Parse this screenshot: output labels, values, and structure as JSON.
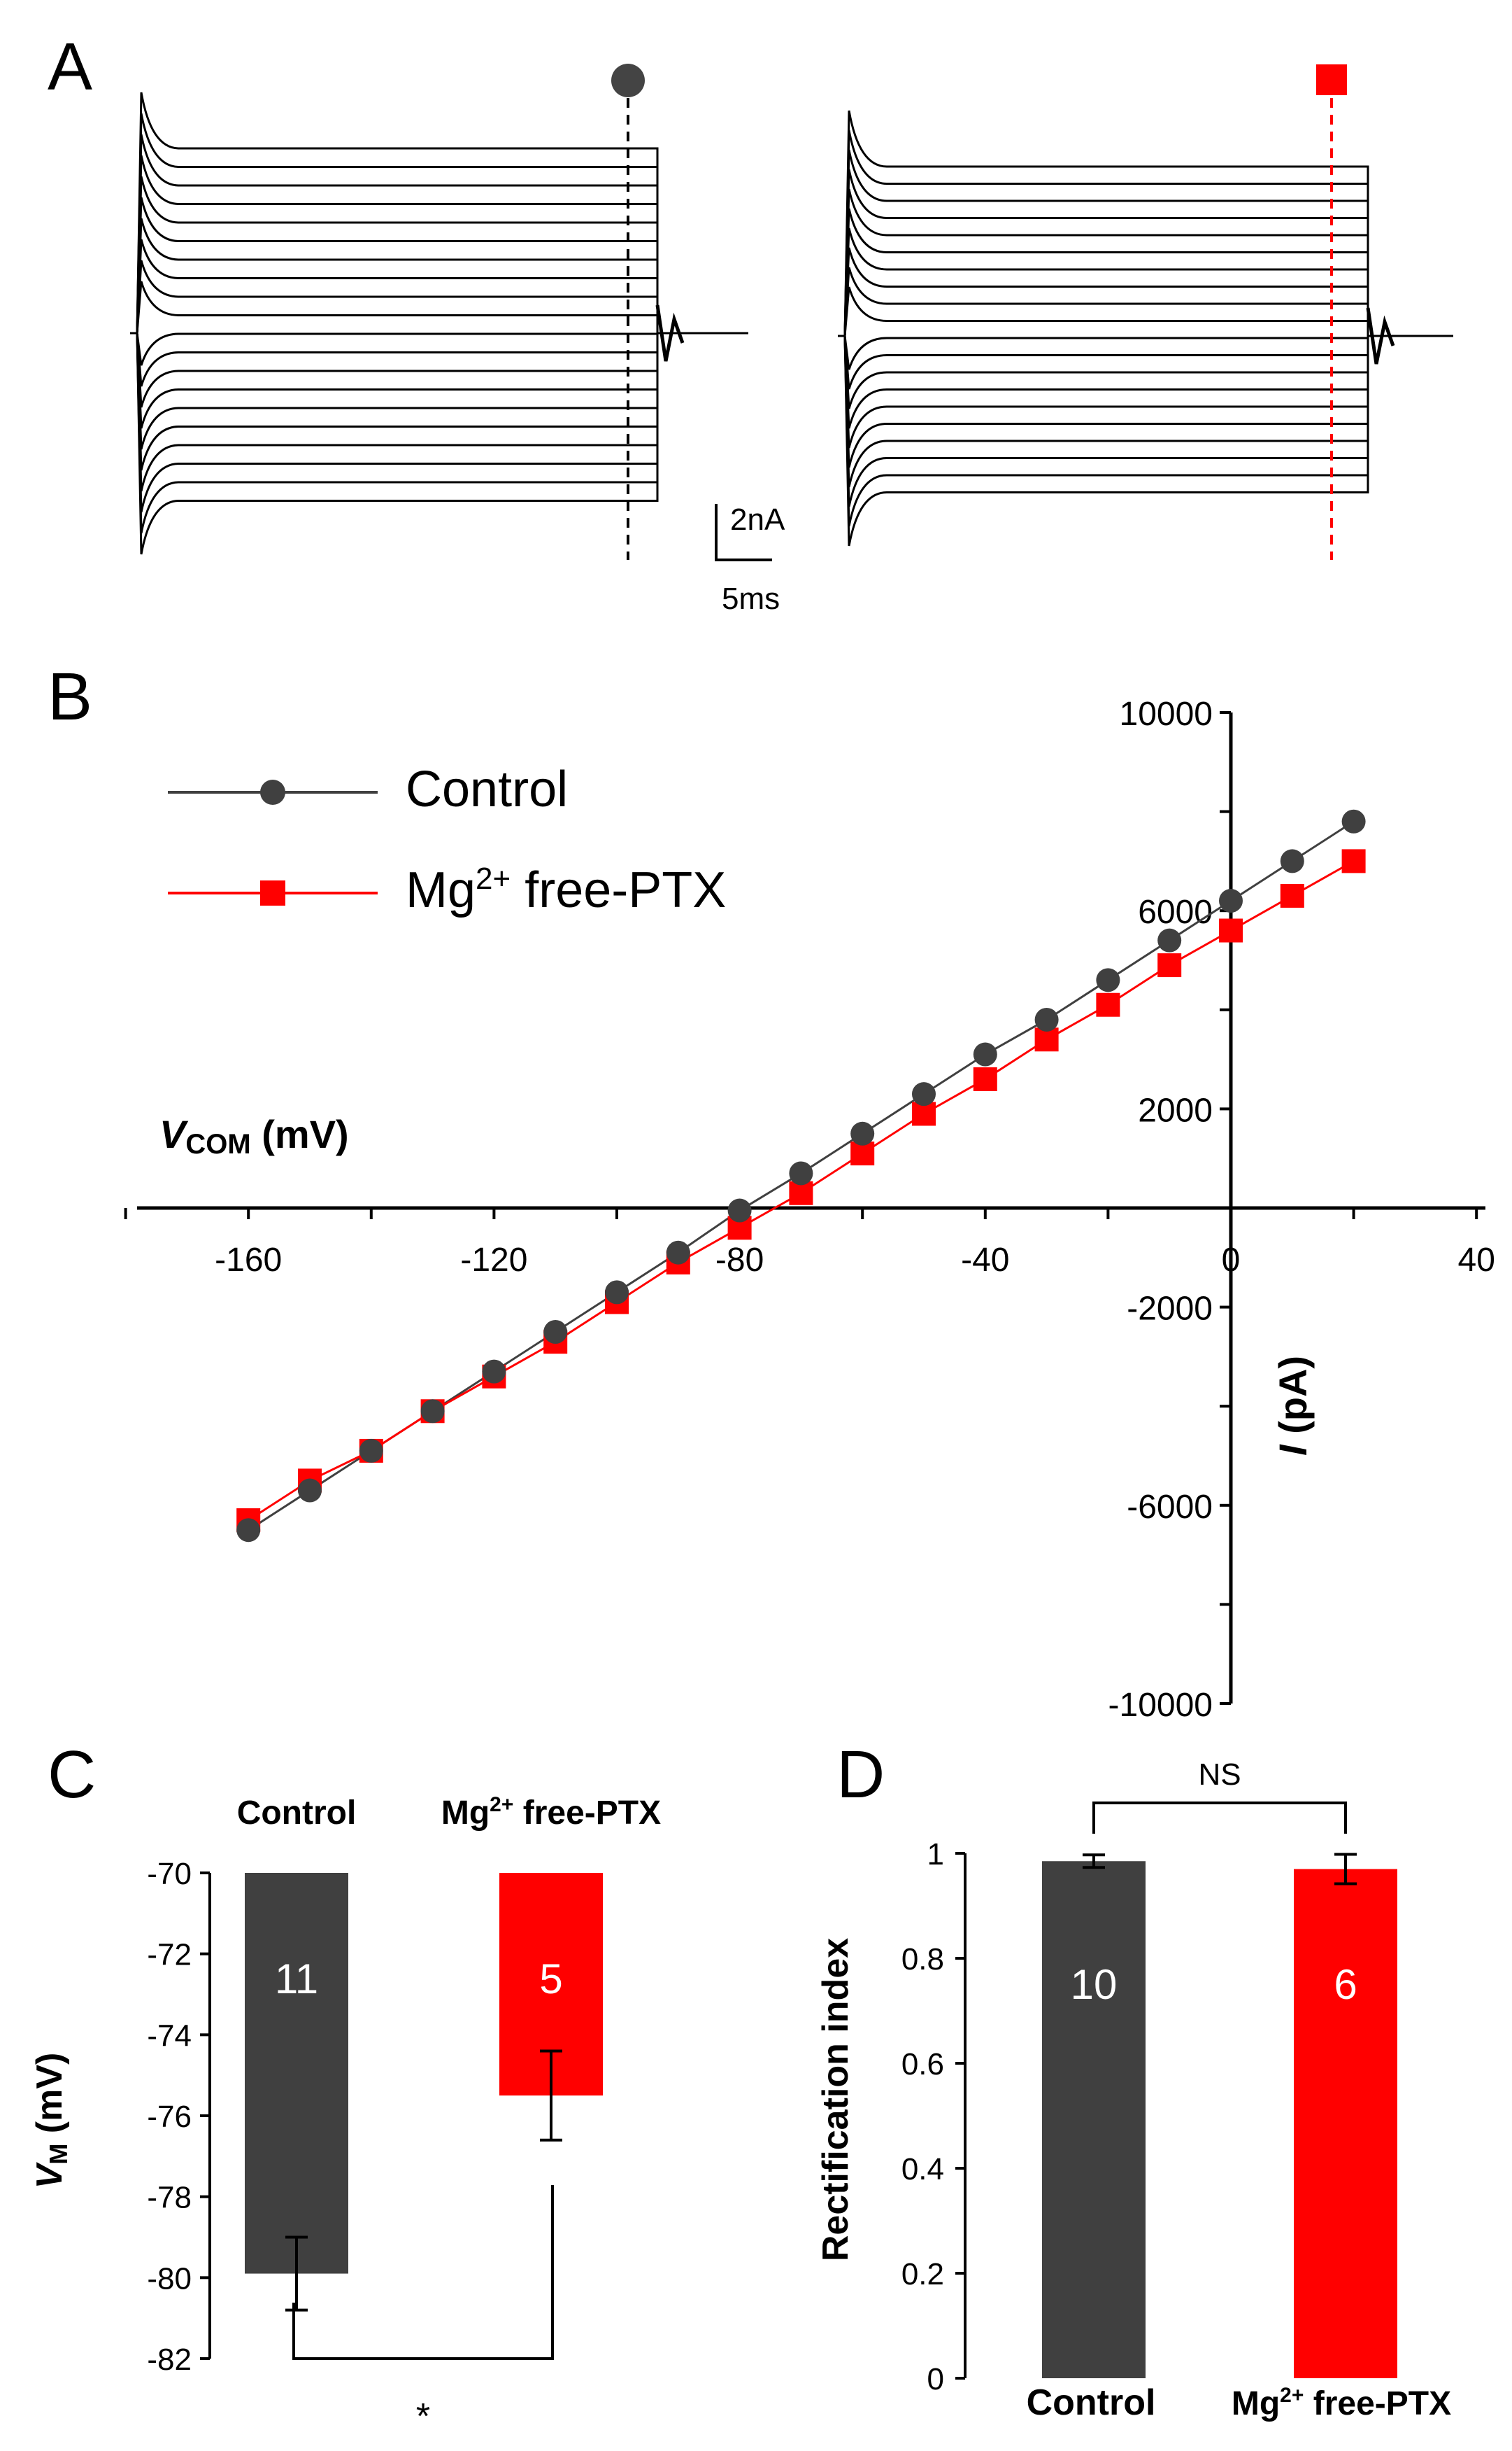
{
  "colors": {
    "control": "#404040",
    "mg": "#ff0000",
    "axis": "#000000"
  },
  "panels": {
    "A": {
      "label": "A",
      "scalebar": {
        "current": "2nA",
        "time": "5ms"
      },
      "markers": {
        "control": "circle",
        "mg": "square"
      }
    },
    "B": {
      "label": "B"
    },
    "C": {
      "label": "C"
    },
    "D": {
      "label": "D"
    }
  },
  "chart_data": [
    {
      "panel": "A",
      "type": "line",
      "title": "",
      "description_traces": "Family of whole-cell current traces; control (left, marker circle) and Mg2+ free-PTX (right, marker square)",
      "series": [
        {
          "name": "Control",
          "steps": 20
        },
        {
          "name": "Mg2+ free-PTX",
          "steps": 20
        }
      ]
    },
    {
      "panel": "B",
      "type": "line",
      "xlabel_main": "V",
      "xlabel_sub": "COM",
      "xlabel_unit": "(mV)",
      "ylabel_main": "I",
      "ylabel_unit": "(pA)",
      "xlim": [
        -180,
        40
      ],
      "ylim": [
        -10000,
        10000
      ],
      "xticks": [
        -160,
        -120,
        -80,
        -40,
        0,
        40
      ],
      "yticks": [
        -10000,
        -6000,
        -2000,
        2000,
        6000,
        10000
      ],
      "legend": {
        "control": "Control",
        "mg_main": "Mg",
        "mg_sup": "2+",
        "mg_rest": " free-PTX"
      },
      "x": [
        -160,
        -150,
        -140,
        -130,
        -120,
        -110,
        -100,
        -90,
        -80,
        -70,
        -60,
        -50,
        -40,
        -30,
        -20,
        -10,
        0,
        10,
        20
      ],
      "series": [
        {
          "name": "Control",
          "values": [
            -6500,
            -5700,
            -4900,
            -4100,
            -3300,
            -2500,
            -1700,
            -900,
            -50,
            700,
            1500,
            2300,
            3100,
            3800,
            4600,
            5400,
            6200,
            7000,
            7800
          ]
        },
        {
          "name": "Mg2+ free-PTX",
          "values": [
            -6300,
            -5500,
            -4900,
            -4100,
            -3400,
            -2700,
            -1900,
            -1100,
            -400,
            300,
            1100,
            1900,
            2600,
            3400,
            4100,
            4900,
            5600,
            6300,
            7000
          ]
        }
      ]
    },
    {
      "panel": "C",
      "type": "bar",
      "ylabel_main": "V",
      "ylabel_sub": "M",
      "ylabel_unit": "(mV)",
      "ylim": [
        -82,
        -70
      ],
      "yticks": [
        -70,
        -72,
        -74,
        -76,
        -78,
        -80,
        -82
      ],
      "categories": [
        "Control",
        "Mg2+ free-PTX"
      ],
      "header_control": "Control",
      "header_mg_main": "Mg",
      "header_mg_sup": "2+",
      "header_mg_rest": " free-PTX",
      "values": [
        -79.9,
        -75.5
      ],
      "errors": [
        0.9,
        1.1
      ],
      "n": [
        "11",
        "5"
      ],
      "significance": "*"
    },
    {
      "panel": "D",
      "type": "bar",
      "ylabel": "Rectification index",
      "ylim": [
        0,
        1
      ],
      "yticks": [
        "0",
        "0.2",
        "0.4",
        "0.6",
        "0.8",
        "1"
      ],
      "categories": [
        "Control",
        "Mg2+ free-PTX"
      ],
      "xlabel_control": "Control",
      "xlabel_mg_main": "Mg",
      "xlabel_mg_sup": "2+",
      "xlabel_mg_rest": " free-PTX",
      "values": [
        0.985,
        0.97
      ],
      "errors": [
        0.012,
        0.028
      ],
      "n": [
        "10",
        "6"
      ],
      "significance": "NS"
    }
  ]
}
